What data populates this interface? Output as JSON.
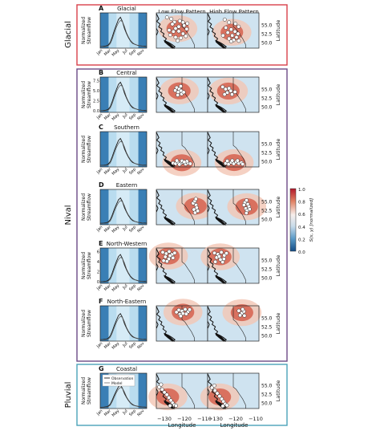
{
  "column_headers": [
    "Low Flow Pattern",
    "High Flow Pattern"
  ],
  "groups": [
    {
      "label": "Glacial",
      "color": "#d9404a"
    },
    {
      "label": "Nival",
      "color": "#6b4a86"
    },
    {
      "label": "Pluvial",
      "color": "#4aa3b8"
    }
  ],
  "rows": [
    {
      "letter": "A",
      "title": "Glacial",
      "hyd_yticks": [],
      "low": [
        [
          -127,
          57.2
        ],
        [
          -125,
          56.8
        ],
        [
          -123.5,
          55.9
        ],
        [
          -124.5,
          55.3
        ],
        [
          -121,
          56.2
        ],
        [
          -119.5,
          55.8
        ],
        [
          -121.5,
          54.6
        ],
        [
          -123,
          54.1
        ],
        [
          -119,
          54.9
        ],
        [
          -117.5,
          55.5
        ],
        [
          -126,
          53.6
        ],
        [
          -124,
          53.2
        ],
        [
          -121.5,
          53.3
        ],
        [
          -119.5,
          52.6
        ],
        [
          -117.8,
          53.9
        ],
        [
          -125.5,
          52.2
        ],
        [
          -123,
          51.6
        ],
        [
          -120.5,
          51.4
        ],
        [
          -118.2,
          51.9
        ],
        [
          -122,
          50.6
        ]
      ],
      "high": [
        [
          -124,
          56.6
        ],
        [
          -122,
          55.8
        ],
        [
          -119,
          55.4
        ],
        [
          -117.5,
          54.6
        ],
        [
          -123.5,
          54.3
        ],
        [
          -121,
          53.8
        ],
        [
          -119.2,
          53.2
        ],
        [
          -117.8,
          52.6
        ],
        [
          -122.6,
          52.9
        ],
        [
          -124.8,
          52.1
        ],
        [
          -120.5,
          52.1
        ],
        [
          -118.5,
          51.6
        ],
        [
          -122,
          51.2
        ],
        [
          -119.8,
          50.8
        ],
        [
          -117.4,
          50.6
        ],
        [
          -121,
          50.4
        ]
      ]
    },
    {
      "letter": "B",
      "title": "Central",
      "hyd_yticks": [
        "7.5",
        "5.0",
        "2.5",
        "0.0"
      ],
      "low": [
        [
          -122.5,
          55.5
        ],
        [
          -121.3,
          55.1
        ],
        [
          -120.4,
          54.6
        ],
        [
          -121.8,
          54.2
        ],
        [
          -120.2,
          53.7
        ],
        [
          -122,
          53.4
        ],
        [
          -119.2,
          54.2
        ],
        [
          -123.2,
          54.7
        ],
        [
          -120.6,
          55.9
        ]
      ],
      "high": [
        [
          -125,
          55.7
        ],
        [
          -123.6,
          55.1
        ],
        [
          -122,
          55.3
        ],
        [
          -121.2,
          54.6
        ],
        [
          -122.8,
          54.1
        ],
        [
          -120.6,
          53.6
        ],
        [
          -119.2,
          54.3
        ],
        [
          -124.1,
          53.6
        ]
      ]
    },
    {
      "letter": "C",
      "title": "Southern",
      "hyd_yticks": [],
      "low": [
        [
          -124.2,
          49.6
        ],
        [
          -123,
          49.4
        ],
        [
          -121.8,
          49.7
        ],
        [
          -120.6,
          49.5
        ],
        [
          -119.4,
          49.8
        ],
        [
          -118.3,
          49.3
        ],
        [
          -117.2,
          49.6
        ],
        [
          -116.1,
          49.4
        ],
        [
          -122.4,
          50.3
        ],
        [
          -120,
          50.2
        ],
        [
          -117.7,
          50.1
        ],
        [
          -118.9,
          49.9
        ],
        [
          -121.2,
          49.2
        ]
      ],
      "high": [
        [
          -123.6,
          49.5
        ],
        [
          -122.2,
          49.3
        ],
        [
          -121,
          49.8
        ],
        [
          -119.8,
          49.4
        ],
        [
          -118.6,
          49.9
        ],
        [
          -117.4,
          49.5
        ],
        [
          -116.2,
          49.7
        ],
        [
          -120.5,
          50.3
        ],
        [
          -118,
          50.3
        ],
        [
          -122.8,
          50.2
        ],
        [
          -115.6,
          49.3
        ]
      ]
    },
    {
      "letter": "D",
      "title": "Eastern",
      "hyd_yticks": [],
      "low": [
        [
          -114.8,
          54.6
        ],
        [
          -114,
          55.2
        ],
        [
          -113.4,
          54.1
        ],
        [
          -113.1,
          53.3
        ],
        [
          -114.4,
          52.8
        ],
        [
          -113.9,
          51.9
        ],
        [
          -112.6,
          52.4
        ],
        [
          -113.5,
          55.8
        ]
      ],
      "high": [
        [
          -114.6,
          54.8
        ],
        [
          -113.8,
          55.4
        ],
        [
          -113.2,
          54.3
        ],
        [
          -112.7,
          53.6
        ],
        [
          -114.2,
          53.1
        ],
        [
          -113.6,
          52.5
        ],
        [
          -112.4,
          52.9
        ],
        [
          -113.9,
          51.8
        ],
        [
          -115,
          54.1
        ]
      ]
    },
    {
      "letter": "E",
      "title": "North-Western",
      "hyd_yticks": [
        "6",
        "4",
        "2",
        "0"
      ],
      "low": [
        [
          -129,
          57.3
        ],
        [
          -127.4,
          56.9
        ],
        [
          -126,
          57.5
        ],
        [
          -124.6,
          56.7
        ],
        [
          -127.8,
          56
        ],
        [
          -126.2,
          55.4
        ],
        [
          -124.2,
          55.7
        ],
        [
          -128.6,
          54.9
        ],
        [
          -125.6,
          56.3
        ],
        [
          -123.4,
          57.1
        ],
        [
          -127,
          54.7
        ]
      ],
      "high": [
        [
          -128.8,
          57.1
        ],
        [
          -127.2,
          56.7
        ],
        [
          -125.6,
          57.3
        ],
        [
          -124.2,
          56.4
        ],
        [
          -127.8,
          55.8
        ],
        [
          -126,
          55.2
        ],
        [
          -124.4,
          55.4
        ],
        [
          -128.4,
          54.6
        ],
        [
          -126.6,
          56.1
        ],
        [
          -123.2,
          57
        ],
        [
          -125,
          54.5
        ]
      ]
    },
    {
      "letter": "F",
      "title": "North-Eastern",
      "hyd_yticks": [],
      "low": [
        [
          -121.5,
          57.3
        ],
        [
          -120,
          57
        ],
        [
          -118.5,
          57.5
        ],
        [
          -117.2,
          56.8
        ],
        [
          -119.6,
          56.3
        ],
        [
          -121,
          56.1
        ],
        [
          -118,
          56.2
        ],
        [
          -122.6,
          56.7
        ],
        [
          -116.4,
          57.4
        ],
        [
          -120.6,
          55.6
        ]
      ],
      "high": [
        [
          -116,
          56.4
        ],
        [
          -115,
          56.9
        ],
        [
          -116.8,
          55.8
        ],
        [
          -114.8,
          55.7
        ],
        [
          -117.4,
          57.1
        ],
        [
          -115.6,
          57.5
        ]
      ]
    },
    {
      "letter": "G",
      "title": "Coastal",
      "hyd_yticks": [],
      "low": [
        [
          -130.6,
          54.6
        ],
        [
          -129.3,
          53.9
        ],
        [
          -128.2,
          53.1
        ],
        [
          -127.1,
          52.4
        ],
        [
          -126.1,
          51.6
        ],
        [
          -125.2,
          50.8
        ],
        [
          -124.4,
          50.1
        ],
        [
          -123.6,
          49.5
        ],
        [
          -122.8,
          49.3
        ],
        [
          -125.6,
          49.3
        ],
        [
          -129.8,
          55.3
        ]
      ],
      "high": [
        [
          -130,
          54.4
        ],
        [
          -128.6,
          53.6
        ],
        [
          -127.5,
          52.8
        ],
        [
          -126.4,
          52
        ],
        [
          -125.4,
          51.2
        ],
        [
          -124.6,
          50.5
        ],
        [
          -123.8,
          49.8
        ],
        [
          -123,
          49.4
        ],
        [
          -124.9,
          49.2
        ],
        [
          -128.9,
          55
        ]
      ]
    }
  ],
  "hydrograph": {
    "ylabel": "Normalized\nStreamflow",
    "xticks": [
      "Jan",
      "Mar",
      "May",
      "Jul",
      "Sep",
      "Nov"
    ],
    "legend": [
      "Observation",
      "Model"
    ]
  },
  "map": {
    "ylabel": "Latitude",
    "xlabel": "Longitude",
    "xticks": [
      "−130",
      "−120",
      "−110"
    ],
    "yticks": [
      "55.0",
      "52.5",
      "50.0"
    ]
  },
  "colorbar": {
    "label": "S(x, y) [normalized]",
    "ticks": [
      "1.0",
      "0.8",
      "0.6",
      "0.4",
      "0.2",
      "0.0"
    ]
  },
  "chart_data": {
    "type": "multi-panel figure: hydrographs and spatial pattern maps",
    "hydrograph_x_ticks": [
      "Jan",
      "Mar",
      "May",
      "Jul",
      "Sep",
      "Nov"
    ],
    "map_x_range": [
      -132,
      -108
    ],
    "map_y_range": [
      48.5,
      58.5
    ],
    "map_x_ticks": [
      -130,
      -120,
      -110
    ],
    "map_y_ticks": [
      55.0,
      52.5,
      50.0
    ],
    "colorbar_range": [
      0.0,
      1.0
    ],
    "colorbar_ticks": [
      0.0,
      0.2,
      0.4,
      0.6,
      0.8,
      1.0
    ],
    "colormap": "RdBu_r",
    "panel_B_y_ticks": [
      0.0,
      2.5,
      5.0,
      7.5
    ],
    "panel_E_y_ticks": [
      0,
      2,
      4,
      6
    ],
    "regimes": {
      "Glacial": [
        "A"
      ],
      "Nival": [
        "B",
        "C",
        "D",
        "E",
        "F"
      ],
      "Pluvial": [
        "G"
      ]
    }
  }
}
